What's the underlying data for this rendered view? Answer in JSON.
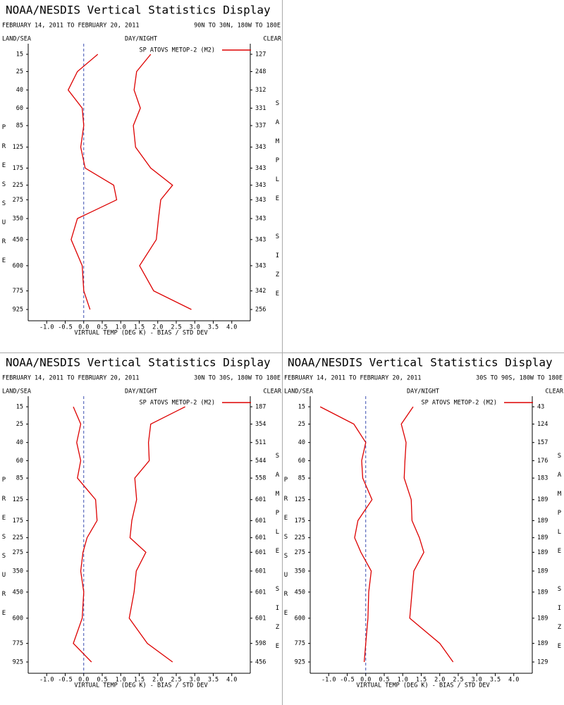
{
  "chart_data": [
    {
      "type": "line",
      "title": "NOAA/NESDIS Vertical Statistics Display",
      "subtitle": "FEBRUARY 14, 2011 TO FEBRUARY 20, 2011",
      "region": "90N TO 30N, 180W TO 180E",
      "land_sea": "LAND/SEA",
      "day_night": "DAY/NIGHT",
      "clear": "CLEAR",
      "ylabel": "PRESSURE",
      "y2label": "SAMPLE SIZE",
      "xlabel": "VIRTUAL TEMP (DEG K) - BIAS / STD DEV",
      "categories": [
        15,
        25,
        40,
        60,
        85,
        125,
        175,
        225,
        275,
        350,
        450,
        600,
        775,
        925
      ],
      "sample_size": [
        127,
        248,
        312,
        331,
        337,
        343,
        343,
        343,
        343,
        343,
        343,
        343,
        342,
        256
      ],
      "series": [
        {
          "name": "SP ATOVS METOP-2 (M2)",
          "color": "#dd0000",
          "bias": [
            0.38,
            -0.17,
            -0.42,
            -0.04,
            0.0,
            -0.08,
            0.04,
            0.81,
            0.89,
            -0.17,
            -0.34,
            -0.04,
            0.0,
            0.17
          ],
          "std_dev": [
            1.81,
            1.43,
            1.36,
            1.53,
            1.34,
            1.4,
            1.81,
            2.4,
            2.08,
            2.02,
            1.96,
            1.51,
            1.89,
            2.91
          ]
        }
      ],
      "xlim": [
        -1.5,
        4.5
      ],
      "xticks": [
        {
          "value": -1,
          "label": "-1.0"
        },
        -0.5,
        {
          "value": 0,
          "label": "0.0"
        },
        0.5,
        {
          "value": 1,
          "label": "1.0"
        },
        1.5,
        {
          "value": 2,
          "label": "2.0"
        },
        2.5,
        {
          "value": 3,
          "label": "3.0"
        },
        3.5,
        {
          "value": 4,
          "label": "4.0"
        }
      ]
    },
    {
      "type": "line",
      "title": "NOAA/NESDIS Vertical Statistics Display",
      "subtitle": "FEBRUARY 14, 2011 TO FEBRUARY 20, 2011",
      "region": "30N TO 30S, 180W TO 180E",
      "land_sea": "LAND/SEA",
      "day_night": "DAY/NIGHT",
      "clear": "CLEAR",
      "ylabel": "PRESSURE",
      "y2label": "SAMPLE SIZE",
      "xlabel": "VIRTUAL TEMP (DEG K) - BIAS / STD DEV",
      "categories": [
        15,
        25,
        40,
        60,
        85,
        125,
        175,
        225,
        275,
        350,
        450,
        600,
        775,
        925
      ],
      "sample_size": [
        187,
        354,
        511,
        544,
        558,
        601,
        601,
        601,
        601,
        601,
        601,
        601,
        598,
        456
      ],
      "series": [
        {
          "name": "SP ATOVS METOP-2 (M2)",
          "color": "#dd0000",
          "bias": [
            -0.28,
            -0.08,
            -0.19,
            -0.08,
            -0.17,
            0.32,
            0.36,
            0.09,
            -0.02,
            -0.08,
            0.0,
            -0.04,
            -0.28,
            0.21
          ],
          "std_dev": [
            2.74,
            1.81,
            1.75,
            1.77,
            1.38,
            1.43,
            1.3,
            1.25,
            1.68,
            1.42,
            1.36,
            1.23,
            1.72,
            2.4
          ]
        }
      ],
      "xlim": [
        -1.5,
        4.5
      ],
      "xticks": [
        {
          "value": -1,
          "label": "-1.0"
        },
        -0.5,
        {
          "value": 0,
          "label": "0.0"
        },
        0.5,
        {
          "value": 1,
          "label": "1.0"
        },
        1.5,
        {
          "value": 2,
          "label": "2.0"
        },
        2.5,
        {
          "value": 3,
          "label": "3.0"
        },
        3.5,
        {
          "value": 4,
          "label": "4.0"
        }
      ]
    },
    {
      "type": "line",
      "title": "NOAA/NESDIS Vertical Statistics Display",
      "subtitle": "FEBRUARY 14, 2011 TO FEBRUARY 20, 2011",
      "region": "30S TO 90S, 180W TO 180E",
      "land_sea": "LAND/SEA",
      "day_night": "DAY/NIGHT",
      "clear": "CLEAR",
      "ylabel": "PRESSURE",
      "y2label": "SAMPLE SIZE",
      "xlabel": "VIRTUAL TEMP (DEG K) - BIAS / STD DEV",
      "categories": [
        15,
        25,
        40,
        60,
        85,
        125,
        175,
        225,
        275,
        350,
        450,
        600,
        775,
        925
      ],
      "sample_size": [
        43,
        124,
        157,
        176,
        183,
        189,
        189,
        189,
        189,
        189,
        189,
        189,
        189,
        129
      ],
      "series": [
        {
          "name": "SP ATOVS METOP-2 (M2)",
          "color": "#dd0000",
          "bias": [
            -1.23,
            -0.32,
            0.0,
            -0.11,
            -0.08,
            0.17,
            -0.21,
            -0.3,
            -0.13,
            0.15,
            0.08,
            0.06,
            0.0,
            -0.04
          ],
          "std_dev": [
            1.28,
            0.96,
            1.09,
            1.06,
            1.04,
            1.23,
            1.25,
            1.45,
            1.57,
            1.3,
            1.25,
            1.19,
            2.0,
            2.36
          ]
        }
      ],
      "xlim": [
        -1.5,
        4.5
      ],
      "xticks": [
        {
          "value": -1,
          "label": "-1.0"
        },
        -0.5,
        {
          "value": 0,
          "label": "0.0"
        },
        0.5,
        {
          "value": 1,
          "label": "1.0"
        },
        1.5,
        {
          "value": 2,
          "label": "2.0"
        },
        2.5,
        {
          "value": 3,
          "label": "3.0"
        },
        3.5,
        {
          "value": 4,
          "label": "4.0"
        }
      ]
    }
  ]
}
